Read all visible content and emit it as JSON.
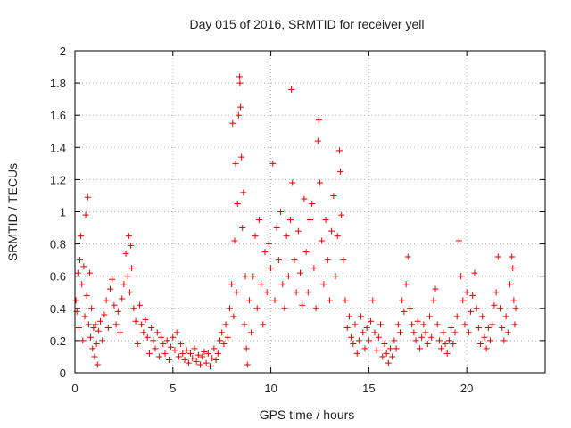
{
  "chart_data": {
    "type": "scatter",
    "title": "Day 015 of 2016, SRMTID for receiver yell",
    "xlabel": "GPS time / hours",
    "ylabel": "SRMTID / TECUs",
    "xlim": [
      0,
      24
    ],
    "ylim": [
      0,
      2
    ],
    "x_ticks": [
      "0",
      "5",
      "10",
      "15",
      "20"
    ],
    "y_ticks": [
      "0",
      "0.2",
      "0.4",
      "0.6",
      "0.8",
      "1",
      "1.2",
      "1.4",
      "1.6",
      "1.8",
      "2"
    ],
    "grid": true,
    "marker": "plus",
    "color": "#e00000",
    "series": [
      {
        "name": "SRMTID",
        "points": [
          [
            0.05,
            0.45
          ],
          [
            0.1,
            0.38
          ],
          [
            0.15,
            0.62
          ],
          [
            0.2,
            0.28
          ],
          [
            0.25,
            0.7
          ],
          [
            0.3,
            0.85
          ],
          [
            0.35,
            0.55
          ],
          [
            0.4,
            0.2
          ],
          [
            0.45,
            0.66
          ],
          [
            0.5,
            0.35
          ],
          [
            0.55,
            0.98
          ],
          [
            0.6,
            0.48
          ],
          [
            0.65,
            1.09
          ],
          [
            0.7,
            0.3
          ],
          [
            0.75,
            0.62
          ],
          [
            0.8,
            0.22
          ],
          [
            0.85,
            0.4
          ],
          [
            0.9,
            0.15
          ],
          [
            0.95,
            0.28
          ],
          [
            1.0,
            0.1
          ],
          [
            1.05,
            0.3
          ],
          [
            1.1,
            0.18
          ],
          [
            1.15,
            0.05
          ],
          [
            1.2,
            0.26
          ],
          [
            1.3,
            0.32
          ],
          [
            1.4,
            0.2
          ],
          [
            1.5,
            0.36
          ],
          [
            1.6,
            0.45
          ],
          [
            1.7,
            0.28
          ],
          [
            1.8,
            0.52
          ],
          [
            1.9,
            0.58
          ],
          [
            2.0,
            0.42
          ],
          [
            2.1,
            0.3
          ],
          [
            2.2,
            0.38
          ],
          [
            2.3,
            0.25
          ],
          [
            2.4,
            0.46
          ],
          [
            2.5,
            0.55
          ],
          [
            2.6,
            0.74
          ],
          [
            2.7,
            0.6
          ],
          [
            2.75,
            0.85
          ],
          [
            2.8,
            0.5
          ],
          [
            2.85,
            0.79
          ],
          [
            2.9,
            0.65
          ],
          [
            3.0,
            0.4
          ],
          [
            3.1,
            0.32
          ],
          [
            3.2,
            0.18
          ],
          [
            3.3,
            0.42
          ],
          [
            3.4,
            0.3
          ],
          [
            3.5,
            0.25
          ],
          [
            3.6,
            0.33
          ],
          [
            3.7,
            0.22
          ],
          [
            3.8,
            0.12
          ],
          [
            3.9,
            0.28
          ],
          [
            4.0,
            0.2
          ],
          [
            4.1,
            0.15
          ],
          [
            4.2,
            0.25
          ],
          [
            4.3,
            0.1
          ],
          [
            4.4,
            0.22
          ],
          [
            4.5,
            0.18
          ],
          [
            4.6,
            0.12
          ],
          [
            4.7,
            0.2
          ],
          [
            4.8,
            0.08
          ],
          [
            4.9,
            0.16
          ],
          [
            5.0,
            0.22
          ],
          [
            5.1,
            0.14
          ],
          [
            5.2,
            0.25
          ],
          [
            5.3,
            0.1
          ],
          [
            5.4,
            0.18
          ],
          [
            5.5,
            0.12
          ],
          [
            5.6,
            0.08
          ],
          [
            5.7,
            0.14
          ],
          [
            5.8,
            0.06
          ],
          [
            5.9,
            0.12
          ],
          [
            6.0,
            0.09
          ],
          [
            6.1,
            0.15
          ],
          [
            6.2,
            0.07
          ],
          [
            6.3,
            0.11
          ],
          [
            6.4,
            0.05
          ],
          [
            6.5,
            0.1
          ],
          [
            6.6,
            0.13
          ],
          [
            6.7,
            0.06
          ],
          [
            6.8,
            0.12
          ],
          [
            6.9,
            0.04
          ],
          [
            7.0,
            0.09
          ],
          [
            7.1,
            0.15
          ],
          [
            7.2,
            0.08
          ],
          [
            7.3,
            0.12
          ],
          [
            7.4,
            0.2
          ],
          [
            7.5,
            0.25
          ],
          [
            7.6,
            0.18
          ],
          [
            7.7,
            0.3
          ],
          [
            7.8,
            0.22
          ],
          [
            7.9,
            0.4
          ],
          [
            8.0,
            0.55
          ],
          [
            8.05,
            1.55
          ],
          [
            8.1,
            0.35
          ],
          [
            8.15,
            0.82
          ],
          [
            8.2,
            1.3
          ],
          [
            8.25,
            0.5
          ],
          [
            8.3,
            1.05
          ],
          [
            8.35,
            1.6
          ],
          [
            8.4,
            1.84
          ],
          [
            8.42,
            1.8
          ],
          [
            8.45,
            1.65
          ],
          [
            8.5,
            1.34
          ],
          [
            8.55,
            0.9
          ],
          [
            8.6,
            1.12
          ],
          [
            8.65,
            0.3
          ],
          [
            8.7,
            0.6
          ],
          [
            8.75,
            0.15
          ],
          [
            8.8,
            0.05
          ],
          [
            8.9,
            0.45
          ],
          [
            9.0,
            0.25
          ],
          [
            9.1,
            0.6
          ],
          [
            9.2,
            0.85
          ],
          [
            9.3,
            0.4
          ],
          [
            9.4,
            0.95
          ],
          [
            9.5,
            0.55
          ],
          [
            9.6,
            0.3
          ],
          [
            9.7,
            0.75
          ],
          [
            9.8,
            0.5
          ],
          [
            9.9,
            0.8
          ],
          [
            10.0,
            0.65
          ],
          [
            10.1,
            1.3
          ],
          [
            10.2,
            0.45
          ],
          [
            10.3,
            0.9
          ],
          [
            10.4,
            0.7
          ],
          [
            10.5,
            1.0
          ],
          [
            10.6,
            0.55
          ],
          [
            10.7,
            0.4
          ],
          [
            10.8,
            0.85
          ],
          [
            10.9,
            0.6
          ],
          [
            11.0,
            0.95
          ],
          [
            11.05,
            1.76
          ],
          [
            11.1,
            1.18
          ],
          [
            11.2,
            0.7
          ],
          [
            11.3,
            0.5
          ],
          [
            11.4,
            0.88
          ],
          [
            11.5,
            0.62
          ],
          [
            11.6,
            0.42
          ],
          [
            11.7,
            1.08
          ],
          [
            11.8,
            0.75
          ],
          [
            11.9,
            0.5
          ],
          [
            12.0,
            0.95
          ],
          [
            12.1,
            1.05
          ],
          [
            12.2,
            0.65
          ],
          [
            12.3,
            0.4
          ],
          [
            12.4,
            1.44
          ],
          [
            12.45,
            1.57
          ],
          [
            12.5,
            1.18
          ],
          [
            12.6,
            0.82
          ],
          [
            12.7,
            0.55
          ],
          [
            12.8,
            0.95
          ],
          [
            12.9,
            0.7
          ],
          [
            13.0,
            0.45
          ],
          [
            13.1,
            0.88
          ],
          [
            13.2,
            1.1
          ],
          [
            13.3,
            0.6
          ],
          [
            13.4,
            0.85
          ],
          [
            13.5,
            1.38
          ],
          [
            13.55,
            1.25
          ],
          [
            13.6,
            0.98
          ],
          [
            13.7,
            0.7
          ],
          [
            13.8,
            0.45
          ],
          [
            13.9,
            0.28
          ],
          [
            14.0,
            0.35
          ],
          [
            14.1,
            0.22
          ],
          [
            14.2,
            0.18
          ],
          [
            14.3,
            0.3
          ],
          [
            14.4,
            0.12
          ],
          [
            14.5,
            0.2
          ],
          [
            14.6,
            0.35
          ],
          [
            14.7,
            0.25
          ],
          [
            14.8,
            0.15
          ],
          [
            14.9,
            0.28
          ],
          [
            15.0,
            0.2
          ],
          [
            15.1,
            0.32
          ],
          [
            15.2,
            0.45
          ],
          [
            15.3,
            0.25
          ],
          [
            15.4,
            0.14
          ],
          [
            15.5,
            0.22
          ],
          [
            15.6,
            0.3
          ],
          [
            15.7,
            0.1
          ],
          [
            15.8,
            0.18
          ],
          [
            15.9,
            0.12
          ],
          [
            16.0,
            0.06
          ],
          [
            16.1,
            0.15
          ],
          [
            16.2,
            0.1
          ],
          [
            16.3,
            0.2
          ],
          [
            16.4,
            0.15
          ],
          [
            16.5,
            0.3
          ],
          [
            16.6,
            0.25
          ],
          [
            16.7,
            0.45
          ],
          [
            16.8,
            0.38
          ],
          [
            16.9,
            0.55
          ],
          [
            17.0,
            0.72
          ],
          [
            17.1,
            0.4
          ],
          [
            17.2,
            0.3
          ],
          [
            17.3,
            0.25
          ],
          [
            17.4,
            0.2
          ],
          [
            17.5,
            0.32
          ],
          [
            17.6,
            0.15
          ],
          [
            17.7,
            0.22
          ],
          [
            17.8,
            0.3
          ],
          [
            17.9,
            0.25
          ],
          [
            18.0,
            0.18
          ],
          [
            18.1,
            0.35
          ],
          [
            18.2,
            0.22
          ],
          [
            18.3,
            0.45
          ],
          [
            18.4,
            0.52
          ],
          [
            18.5,
            0.3
          ],
          [
            18.6,
            0.2
          ],
          [
            18.7,
            0.15
          ],
          [
            18.8,
            0.25
          ],
          [
            18.9,
            0.18
          ],
          [
            19.0,
            0.12
          ],
          [
            19.1,
            0.2
          ],
          [
            19.2,
            0.28
          ],
          [
            19.3,
            0.18
          ],
          [
            19.4,
            0.25
          ],
          [
            19.5,
            0.35
          ],
          [
            19.6,
            0.82
          ],
          [
            19.7,
            0.6
          ],
          [
            19.8,
            0.45
          ],
          [
            19.9,
            0.3
          ],
          [
            20.0,
            0.5
          ],
          [
            20.1,
            0.25
          ],
          [
            20.2,
            0.38
          ],
          [
            20.3,
            0.48
          ],
          [
            20.4,
            0.62
          ],
          [
            20.5,
            0.4
          ],
          [
            20.6,
            0.28
          ],
          [
            20.7,
            0.18
          ],
          [
            20.8,
            0.35
          ],
          [
            20.9,
            0.22
          ],
          [
            21.0,
            0.15
          ],
          [
            21.1,
            0.28
          ],
          [
            21.2,
            0.2
          ],
          [
            21.3,
            0.3
          ],
          [
            21.4,
            0.42
          ],
          [
            21.5,
            0.5
          ],
          [
            21.6,
            0.72
          ],
          [
            21.7,
            0.4
          ],
          [
            21.8,
            0.28
          ],
          [
            21.9,
            0.2
          ],
          [
            22.0,
            0.35
          ],
          [
            22.1,
            0.25
          ],
          [
            22.2,
            0.55
          ],
          [
            22.3,
            0.72
          ],
          [
            22.35,
            0.65
          ],
          [
            22.4,
            0.45
          ],
          [
            22.45,
            0.3
          ],
          [
            22.5,
            0.4
          ]
        ]
      }
    ]
  }
}
